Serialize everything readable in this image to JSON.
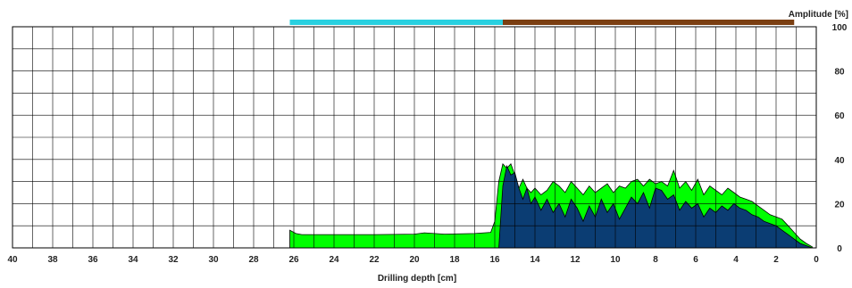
{
  "chart_data": {
    "type": "area",
    "xlabel": "Drilling depth [cm]",
    "ylabel": "Amplitude [%]",
    "xlim": [
      40,
      0
    ],
    "ylim": [
      0,
      100
    ],
    "x_ticks": [
      "40",
      "38",
      "36",
      "34",
      "32",
      "30",
      "28",
      "26",
      "24",
      "22",
      "20",
      "18",
      "16",
      "14",
      "12",
      "10",
      "8",
      "6",
      "4",
      "2",
      "0"
    ],
    "y_ticks": [
      "0",
      "20",
      "40",
      "60",
      "80",
      "100"
    ],
    "grid": true,
    "colors": {
      "light_series": "#00ff00",
      "dark_series": "#0b3d73",
      "cyan_band": "#29d0e0",
      "brown_band": "#7b3f12",
      "grid": "#000000"
    },
    "top_bands": [
      {
        "from": 26.2,
        "to": 15.6,
        "color": "#29d0e0"
      },
      {
        "from": 15.6,
        "to": 1.1,
        "color": "#7b3f12"
      }
    ],
    "series": [
      {
        "color": "#00ff00",
        "x": [
          26.2,
          25.9,
          25.6,
          24,
          22,
          20,
          19.5,
          18.5,
          17,
          16.2,
          16.0,
          15.8,
          15.6,
          15.4,
          15.2,
          15.0,
          14.8,
          14.6,
          14.4,
          14.2,
          14.0,
          13.7,
          13.4,
          13.1,
          12.8,
          12.5,
          12.2,
          11.9,
          11.6,
          11.3,
          11.0,
          10.7,
          10.4,
          10.1,
          9.8,
          9.5,
          9.2,
          8.9,
          8.6,
          8.3,
          8.0,
          7.7,
          7.4,
          7.1,
          6.8,
          6.5,
          6.2,
          5.9,
          5.6,
          5.3,
          5.0,
          4.7,
          4.4,
          4.1,
          3.8,
          3.5,
          3.2,
          2.9,
          2.6,
          2.3,
          2.0,
          1.7,
          1.4,
          1.1,
          0.8,
          0.5,
          0.2
        ],
        "values": [
          8,
          6.5,
          6,
          6,
          6,
          6.2,
          6.8,
          6.2,
          6.5,
          7,
          12,
          30,
          38,
          36,
          38,
          33,
          27,
          31,
          27,
          25,
          27,
          24,
          26,
          30,
          28,
          25,
          30,
          27,
          24,
          28,
          25,
          27,
          29,
          25,
          28,
          27,
          30,
          31,
          28,
          31,
          29,
          30,
          28,
          35,
          27,
          30,
          26,
          31,
          24,
          28,
          26,
          24,
          27,
          25,
          23,
          22,
          21,
          19,
          17,
          15,
          14,
          13,
          10,
          7,
          4,
          2,
          0.5
        ]
      },
      {
        "color": "#0b3d73",
        "x": [
          15.8,
          15.6,
          15.4,
          15.2,
          15.0,
          14.8,
          14.6,
          14.4,
          14.2,
          14.0,
          13.7,
          13.4,
          13.1,
          12.8,
          12.5,
          12.2,
          11.9,
          11.6,
          11.3,
          11.0,
          10.7,
          10.4,
          10.1,
          9.8,
          9.5,
          9.2,
          8.9,
          8.6,
          8.3,
          8.0,
          7.7,
          7.4,
          7.1,
          6.8,
          6.5,
          6.2,
          5.9,
          5.6,
          5.3,
          5.0,
          4.7,
          4.4,
          4.1,
          3.8,
          3.5,
          3.2,
          2.9,
          2.6,
          2.3,
          2.0,
          1.7,
          1.4,
          1.1,
          0.8,
          0.5,
          0.2
        ],
        "values": [
          0,
          28,
          37,
          33,
          34,
          27,
          22,
          27,
          20,
          23,
          17,
          22,
          16,
          20,
          14,
          22,
          18,
          12,
          19,
          14,
          22,
          16,
          20,
          13,
          18,
          23,
          20,
          25,
          18,
          27,
          26,
          22,
          24,
          17,
          21,
          18,
          20,
          14,
          18,
          16,
          19,
          17,
          20,
          18,
          17,
          15,
          14,
          12,
          11,
          10,
          8,
          6,
          4,
          2,
          1,
          0
        ]
      }
    ]
  }
}
